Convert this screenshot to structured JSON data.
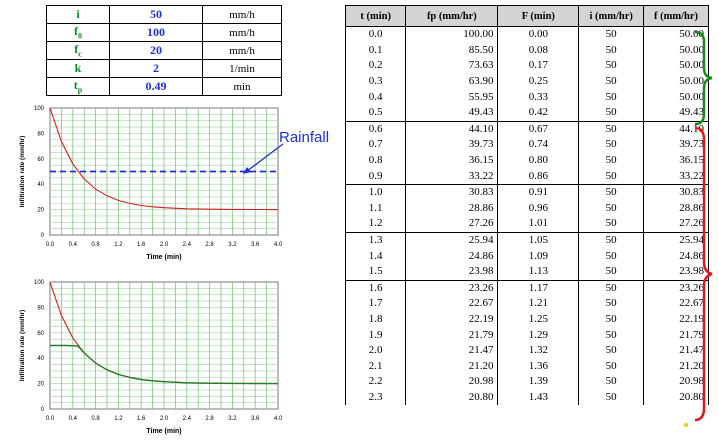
{
  "params": [
    {
      "symbol": "i",
      "value": "50",
      "unit": "mm/h"
    },
    {
      "symbol": "f0",
      "value": "100",
      "unit": "mm/h"
    },
    {
      "symbol": "fc",
      "value": "20",
      "unit": "mm/h"
    },
    {
      "symbol": "k",
      "value": "2",
      "unit": "1/min"
    },
    {
      "symbol": "tp",
      "value": "0.49",
      "unit": "min"
    }
  ],
  "table": {
    "headers": [
      "t (min)",
      "fp (mm/hr)",
      "F (min)",
      "i (mm/hr)",
      "f (mm/hr)"
    ],
    "rows": [
      [
        "0.0",
        "100.00",
        "0.00",
        "50",
        "50.00"
      ],
      [
        "0.1",
        "85.50",
        "0.08",
        "50",
        "50.00"
      ],
      [
        "0.2",
        "73.63",
        "0.17",
        "50",
        "50.00"
      ],
      [
        "0.3",
        "63.90",
        "0.25",
        "50",
        "50.00"
      ],
      [
        "0.4",
        "55.95",
        "0.33",
        "50",
        "50.00"
      ],
      [
        "0.5",
        "49.43",
        "0.42",
        "50",
        "49.43"
      ],
      [
        "0.6",
        "44.10",
        "0.67",
        "50",
        "44.10"
      ],
      [
        "0.7",
        "39.73",
        "0.74",
        "50",
        "39.73"
      ],
      [
        "0.8",
        "36.15",
        "0.80",
        "50",
        "36.15"
      ],
      [
        "0.9",
        "33.22",
        "0.86",
        "50",
        "33.22"
      ],
      [
        "1.0",
        "30.83",
        "0.91",
        "50",
        "30.83"
      ],
      [
        "1.1",
        "28.86",
        "0.96",
        "50",
        "28.86"
      ],
      [
        "1.2",
        "27.26",
        "1.01",
        "50",
        "27.26"
      ],
      [
        "1.3",
        "25.94",
        "1.05",
        "50",
        "25.94"
      ],
      [
        "1.4",
        "24.86",
        "1.09",
        "50",
        "24.86"
      ],
      [
        "1.5",
        "23.98",
        "1.13",
        "50",
        "23.98"
      ],
      [
        "1.6",
        "23.26",
        "1.17",
        "50",
        "23.26"
      ],
      [
        "1.7",
        "22.67",
        "1.21",
        "50",
        "22.67"
      ],
      [
        "1.8",
        "22.19",
        "1.25",
        "50",
        "22.19"
      ],
      [
        "1.9",
        "21.79",
        "1.29",
        "50",
        "21.79"
      ],
      [
        "2.0",
        "21.47",
        "1.32",
        "50",
        "21.47"
      ],
      [
        "2.1",
        "21.20",
        "1.36",
        "50",
        "21.20"
      ],
      [
        "2.2",
        "20.98",
        "1.39",
        "50",
        "20.98"
      ],
      [
        "2.3",
        "20.80",
        "1.43",
        "50",
        "20.80"
      ]
    ]
  },
  "annotation": {
    "rainfall": "Rainfall"
  },
  "colors": {
    "green": "#0a8a2a",
    "blue": "#1f2fd6",
    "curve": "#d42020",
    "brace_red": "#e01818",
    "brace_green": "#1a8a1a",
    "dash": "#1f2fd6"
  },
  "chart_data": [
    {
      "type": "line",
      "xlabel": "Time (min)",
      "ylabel": "Infiltration rate (mm/hr)",
      "xlim": [
        0,
        4
      ],
      "ylim": [
        0,
        100
      ],
      "xticks": [
        "0.0",
        "0.4",
        "0.8",
        "1.2",
        "1.6",
        "2.0",
        "2.4",
        "2.8",
        "3.2",
        "3.6",
        "4.0"
      ],
      "yticks": [
        "0",
        "20",
        "40",
        "60",
        "80",
        "100"
      ],
      "grid": true,
      "series": [
        {
          "values": [
            [
              0,
              100
            ],
            [
              0.2,
              73.63
            ],
            [
              0.4,
              55.95
            ],
            [
              0.6,
              44.1
            ],
            [
              0.8,
              36.15
            ],
            [
              1.0,
              30.83
            ],
            [
              1.2,
              27.26
            ],
            [
              1.4,
              24.86
            ],
            [
              1.6,
              23.26
            ],
            [
              1.8,
              22.19
            ],
            [
              2.0,
              21.47
            ],
            [
              2.4,
              20.66
            ],
            [
              2.8,
              20.3
            ],
            [
              3.2,
              20.13
            ],
            [
              3.6,
              20.06
            ],
            [
              4.0,
              20.03
            ]
          ],
          "style": "solid"
        },
        {
          "values": [
            [
              0,
              50
            ],
            [
              4,
              50
            ]
          ],
          "style": "dashed"
        }
      ]
    },
    {
      "type": "line",
      "xlabel": "Time (min)",
      "ylabel": "Infiltration rate (mm/hr)",
      "xlim": [
        0,
        4
      ],
      "ylim": [
        0,
        100
      ],
      "xticks": [
        "0.0",
        "0.4",
        "0.8",
        "1.2",
        "1.6",
        "2.0",
        "2.4",
        "2.8",
        "3.2",
        "3.6",
        "4.0"
      ],
      "yticks": [
        "0",
        "20",
        "40",
        "60",
        "80",
        "100"
      ],
      "grid": true,
      "series": [
        {
          "values": [
            [
              0,
              100
            ],
            [
              0.2,
              73.63
            ],
            [
              0.4,
              55.95
            ],
            [
              0.6,
              44.1
            ],
            [
              0.8,
              36.15
            ],
            [
              1.0,
              30.83
            ],
            [
              1.2,
              27.26
            ],
            [
              1.4,
              24.86
            ],
            [
              1.6,
              23.26
            ],
            [
              1.8,
              22.19
            ],
            [
              2.0,
              21.47
            ],
            [
              2.4,
              20.66
            ],
            [
              2.8,
              20.3
            ],
            [
              3.2,
              20.13
            ],
            [
              3.6,
              20.06
            ],
            [
              4.0,
              20.03
            ]
          ],
          "style": "solid"
        },
        {
          "values": [
            [
              0,
              50
            ],
            [
              0.3,
              50
            ],
            [
              0.49,
              49.6
            ],
            [
              0.6,
              44.1
            ],
            [
              0.8,
              36.15
            ],
            [
              1.0,
              30.83
            ],
            [
              1.2,
              27.26
            ],
            [
              1.4,
              24.86
            ],
            [
              1.6,
              23.26
            ],
            [
              1.8,
              22.19
            ],
            [
              2.0,
              21.47
            ],
            [
              2.4,
              20.66
            ],
            [
              2.8,
              20.3
            ],
            [
              3.2,
              20.13
            ],
            [
              3.6,
              20.06
            ],
            [
              4.0,
              20.03
            ]
          ],
          "style": "solid_green"
        }
      ]
    }
  ]
}
